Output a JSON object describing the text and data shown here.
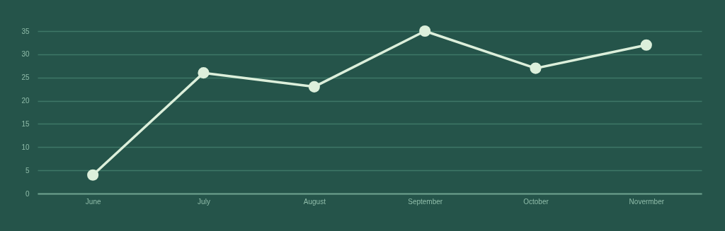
{
  "chart_data": {
    "type": "line",
    "categories": [
      "June",
      "July",
      "August",
      "September",
      "October",
      "Novermber"
    ],
    "series": [
      {
        "color": "#dcefdb",
        "values": [
          4,
          26,
          23,
          35,
          27,
          32
        ]
      }
    ],
    "ylim": [
      0,
      35
    ],
    "yticks": [
      0,
      5,
      10,
      15,
      20,
      25,
      30,
      35
    ],
    "grid": "y",
    "legend": false,
    "marker": "circle",
    "line_style": "solid"
  }
}
